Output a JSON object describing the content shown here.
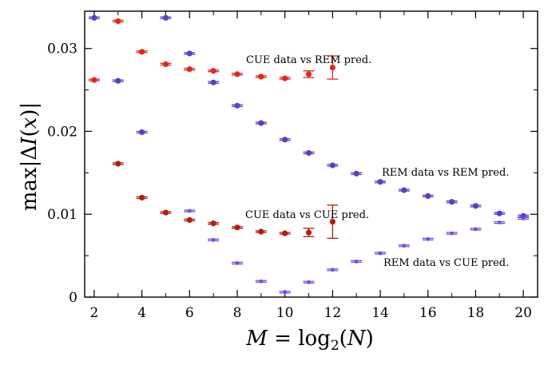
{
  "chart_data": {
    "type": "scatter",
    "xlabel": "M = log2(N)",
    "ylabel": "max|ΔI(x)|",
    "xlim": [
      1.6,
      20.6
    ],
    "ylim": [
      0,
      0.0345
    ],
    "x_ticks": [
      "2",
      "4",
      "6",
      "8",
      "10",
      "12",
      "14",
      "16",
      "18",
      "20"
    ],
    "y_ticks": [
      "0",
      "0.01",
      "0.02",
      "0.03"
    ],
    "grid": false,
    "colors": {
      "cue": "#e0281c",
      "cue_dark": "#b51c12",
      "rem": "#6b4fe8",
      "rem_dark": "#5a3fc4"
    },
    "annotations": [
      "CUE data vs REM pred.",
      "REM data vs REM pred.",
      "CUE data vs CUE pred.",
      "REM data vs CUE pred."
    ],
    "series": [
      {
        "name": "CUE data vs REM pred.",
        "color_key": "cue",
        "x": [
          2,
          3,
          4,
          5,
          6,
          7,
          8,
          9,
          10,
          11,
          12
        ],
        "y": [
          0.0262,
          0.0333,
          0.0296,
          0.0281,
          0.0275,
          0.0273,
          0.0269,
          0.0266,
          0.0264,
          0.0269,
          0.0277
        ],
        "err": [
          0.0001,
          0.0001,
          0.0001,
          0.0001,
          0.0001,
          0.0001,
          0.0001,
          0.0001,
          0.0001,
          0.0004,
          0.0014
        ]
      },
      {
        "name": "REM data vs REM pred.",
        "color_key": "rem_dark",
        "x": [
          2,
          3,
          4,
          5,
          6,
          7,
          8,
          9,
          10,
          11,
          12,
          13,
          14,
          15,
          16,
          17,
          18,
          19,
          20
        ],
        "y": [
          0.0337,
          0.0261,
          0.0199,
          0.0337,
          0.0294,
          0.0259,
          0.0231,
          0.021,
          0.019,
          0.0174,
          0.0159,
          0.0149,
          0.0139,
          0.0129,
          0.0122,
          0.0115,
          0.011,
          0.0101,
          0.0098
        ],
        "err": [
          0.0001,
          0.0001,
          0.0001,
          0.0001,
          0.0001,
          0.0001,
          0.0001,
          0.0001,
          0.0001,
          0.0001,
          0.0001,
          0.0001,
          0.0001,
          0.0001,
          0.0001,
          0.0001,
          0.0001,
          0.0001,
          0.0001
        ]
      },
      {
        "name": "CUE data vs CUE pred.",
        "color_key": "cue_dark",
        "x": [
          3,
          4,
          5,
          6,
          7,
          8,
          9,
          10,
          11,
          12
        ],
        "y": [
          0.0161,
          0.012,
          0.0102,
          0.0093,
          0.0089,
          0.0084,
          0.0079,
          0.0077,
          0.0078,
          0.0091
        ],
        "err": [
          0.0001,
          0.0001,
          0.0001,
          0.0001,
          0.0001,
          0.0001,
          0.0001,
          0.0001,
          0.0005,
          0.002
        ]
      },
      {
        "name": "REM data vs CUE pred.",
        "color_key": "rem",
        "x": [
          6,
          7,
          8,
          9,
          10,
          11,
          12,
          13,
          14,
          15,
          16,
          17,
          18,
          19,
          20
        ],
        "y": [
          0.0104,
          0.0069,
          0.0041,
          0.0019,
          0.0006,
          0.0018,
          0.0033,
          0.0043,
          0.0053,
          0.0062,
          0.007,
          0.0077,
          0.0082,
          0.009,
          0.0095
        ],
        "err": [
          0.0001,
          0.0001,
          0.0001,
          0.0001,
          0.0001,
          0.0001,
          0.0001,
          0.0001,
          0.0001,
          0.0001,
          0.0001,
          0.0001,
          0.0001,
          0.0001,
          0.0001
        ]
      }
    ]
  }
}
